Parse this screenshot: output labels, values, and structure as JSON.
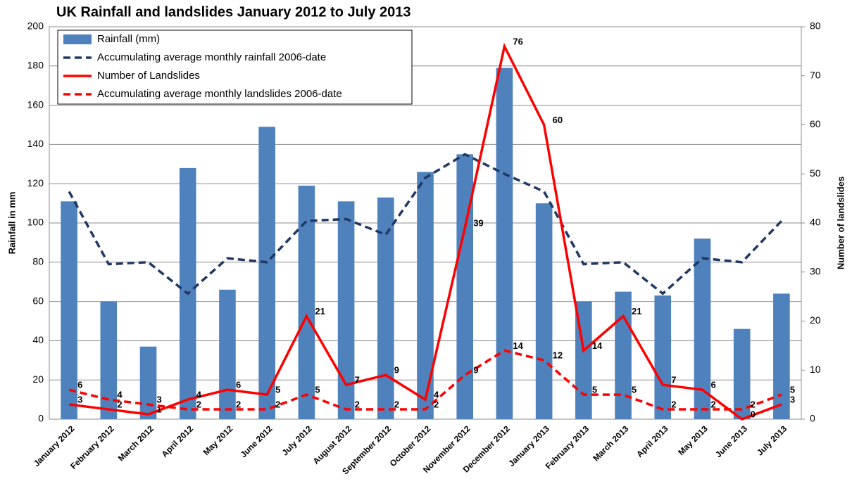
{
  "chart_data": {
    "type": "bar-line",
    "title": "UK Rainfall and landslides January 2012 to July 2013",
    "y_label": "Rainfall in mm",
    "y2_label": "Number of landslides",
    "categories": [
      "January 2012",
      "February 2012",
      "March 2012",
      "April 2012",
      "May 2012",
      "June 2012",
      "July 2012",
      "August 2012",
      "September 2012",
      "October 2012",
      "November 2012",
      "December 2012",
      "January 2013",
      "February 2013",
      "March 2013",
      "April 2013",
      "May 2013",
      "June 2013",
      "July 2013"
    ],
    "series": [
      {
        "name": "Rainfall (mm)",
        "type": "bar",
        "color": "#4f81bd",
        "values": [
          111,
          60,
          37,
          128,
          66,
          149,
          119,
          111,
          113,
          126,
          135,
          179,
          110,
          60,
          65,
          63,
          92,
          46,
          64
        ]
      },
      {
        "name": "Accumulating average monthly rainfall 2006-date",
        "type": "line",
        "dashed": true,
        "color": "#1f3864",
        "values": [
          116,
          79,
          80,
          64,
          82,
          80,
          101,
          102,
          94,
          123,
          135,
          125,
          116,
          79,
          80,
          64,
          82,
          80,
          101
        ]
      },
      {
        "name": "Number of Landslides",
        "type": "line",
        "dashed": false,
        "axis": "y2",
        "data_labels": true,
        "color": "#ff0000",
        "values": [
          3,
          2,
          1,
          4,
          6,
          5,
          21,
          7,
          9,
          4,
          39,
          76,
          60,
          14,
          21,
          7,
          6,
          0,
          3
        ]
      },
      {
        "name": "Accumulating average monthly landslides 2006-date",
        "type": "line",
        "dashed": true,
        "axis": "y2",
        "data_labels": true,
        "color": "#ff0000",
        "values": [
          6,
          4,
          3,
          2,
          2,
          2,
          5,
          2,
          2,
          2,
          9,
          14,
          12,
          5,
          5,
          2,
          2,
          2,
          5
        ]
      }
    ],
    "ylim": [
      0,
      200
    ],
    "yticks": [
      0,
      20,
      40,
      60,
      80,
      100,
      120,
      140,
      160,
      180,
      200
    ],
    "y2lim": [
      0,
      80
    ],
    "y2ticks": [
      0,
      10,
      20,
      30,
      40,
      50,
      60,
      70,
      80
    ],
    "grid": true,
    "legend": "top-left"
  }
}
